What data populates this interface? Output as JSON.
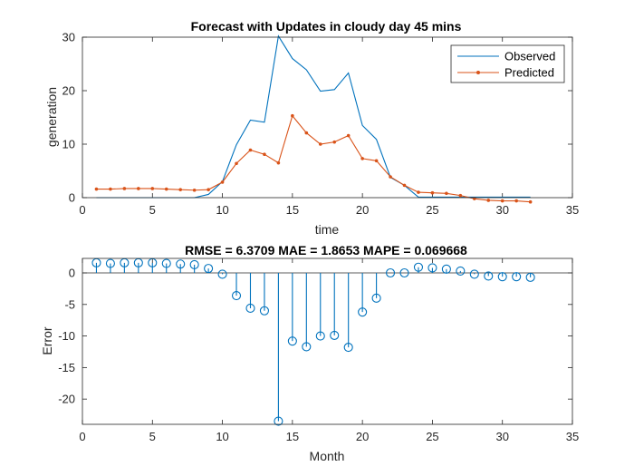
{
  "chart_data": [
    {
      "type": "line",
      "title": "Forecast with Updates in cloudy day 45 mins",
      "xlabel": "time",
      "ylabel": "generation",
      "xlim": [
        0,
        35
      ],
      "ylim": [
        0,
        30
      ],
      "xticks": [
        0,
        5,
        10,
        15,
        20,
        25,
        30,
        35
      ],
      "yticks": [
        0,
        10,
        20,
        30
      ],
      "grid": false,
      "legend_position": "top-right",
      "series": [
        {
          "name": "Observed",
          "color": "#0072BD",
          "marker": "none",
          "x": [
            1,
            2,
            3,
            4,
            5,
            6,
            7,
            8,
            9,
            10,
            11,
            12,
            13,
            14,
            15,
            16,
            17,
            18,
            19,
            20,
            21,
            22,
            23,
            24,
            25,
            26,
            27,
            28,
            29,
            30,
            31,
            32
          ],
          "y": [
            0,
            0,
            0,
            0,
            0,
            0,
            0,
            0,
            0.6,
            3.0,
            9.9,
            14.5,
            14.1,
            30.2,
            26.0,
            23.9,
            19.9,
            20.2,
            23.3,
            13.5,
            10.9,
            3.8,
            2.3,
            0.1,
            0.1,
            0.1,
            0.1,
            0.1,
            0.1,
            0.1,
            0.1,
            0.1
          ]
        },
        {
          "name": "Predicted",
          "color": "#D95319",
          "marker": "dot",
          "x": [
            1,
            2,
            3,
            4,
            5,
            6,
            7,
            8,
            9,
            10,
            11,
            12,
            13,
            14,
            15,
            16,
            17,
            18,
            19,
            20,
            21,
            22,
            23,
            24,
            25,
            26,
            27,
            28,
            29,
            30,
            31,
            32
          ],
          "y": [
            1.6,
            1.6,
            1.7,
            1.7,
            1.7,
            1.6,
            1.5,
            1.4,
            1.5,
            2.9,
            6.4,
            8.9,
            8.1,
            6.5,
            15.3,
            12.1,
            10.0,
            10.4,
            11.6,
            7.3,
            6.9,
            3.9,
            2.3,
            1.0,
            0.9,
            0.8,
            0.4,
            -0.2,
            -0.5,
            -0.6,
            -0.6,
            -0.8
          ]
        }
      ]
    },
    {
      "type": "stem",
      "title": "RMSE = 6.3709 MAE = 1.8653 MAPE = 0.069668",
      "xlabel": "Month",
      "ylabel": "Error",
      "xlim": [
        0,
        35
      ],
      "ylim": [
        -24,
        2.3
      ],
      "xticks": [
        0,
        5,
        10,
        15,
        20,
        25,
        30,
        35
      ],
      "yticks": [
        0,
        -5,
        -10,
        -15,
        -20
      ],
      "grid": false,
      "series": [
        {
          "color": "#0072BD",
          "marker": "circle",
          "x": [
            1,
            2,
            3,
            4,
            5,
            6,
            7,
            8,
            9,
            10,
            11,
            12,
            13,
            14,
            15,
            16,
            17,
            18,
            19,
            20,
            21,
            22,
            23,
            24,
            25,
            26,
            27,
            28,
            29,
            30,
            31,
            32
          ],
          "y": [
            1.6,
            1.5,
            1.6,
            1.6,
            1.6,
            1.5,
            1.4,
            1.3,
            0.7,
            -0.2,
            -3.6,
            -5.6,
            -6.0,
            -23.5,
            -10.8,
            -11.7,
            -10.0,
            -9.9,
            -11.8,
            -6.2,
            -4.0,
            0.0,
            0.0,
            0.9,
            0.8,
            0.6,
            0.3,
            -0.2,
            -0.5,
            -0.6,
            -0.6,
            -0.7
          ]
        }
      ]
    }
  ]
}
